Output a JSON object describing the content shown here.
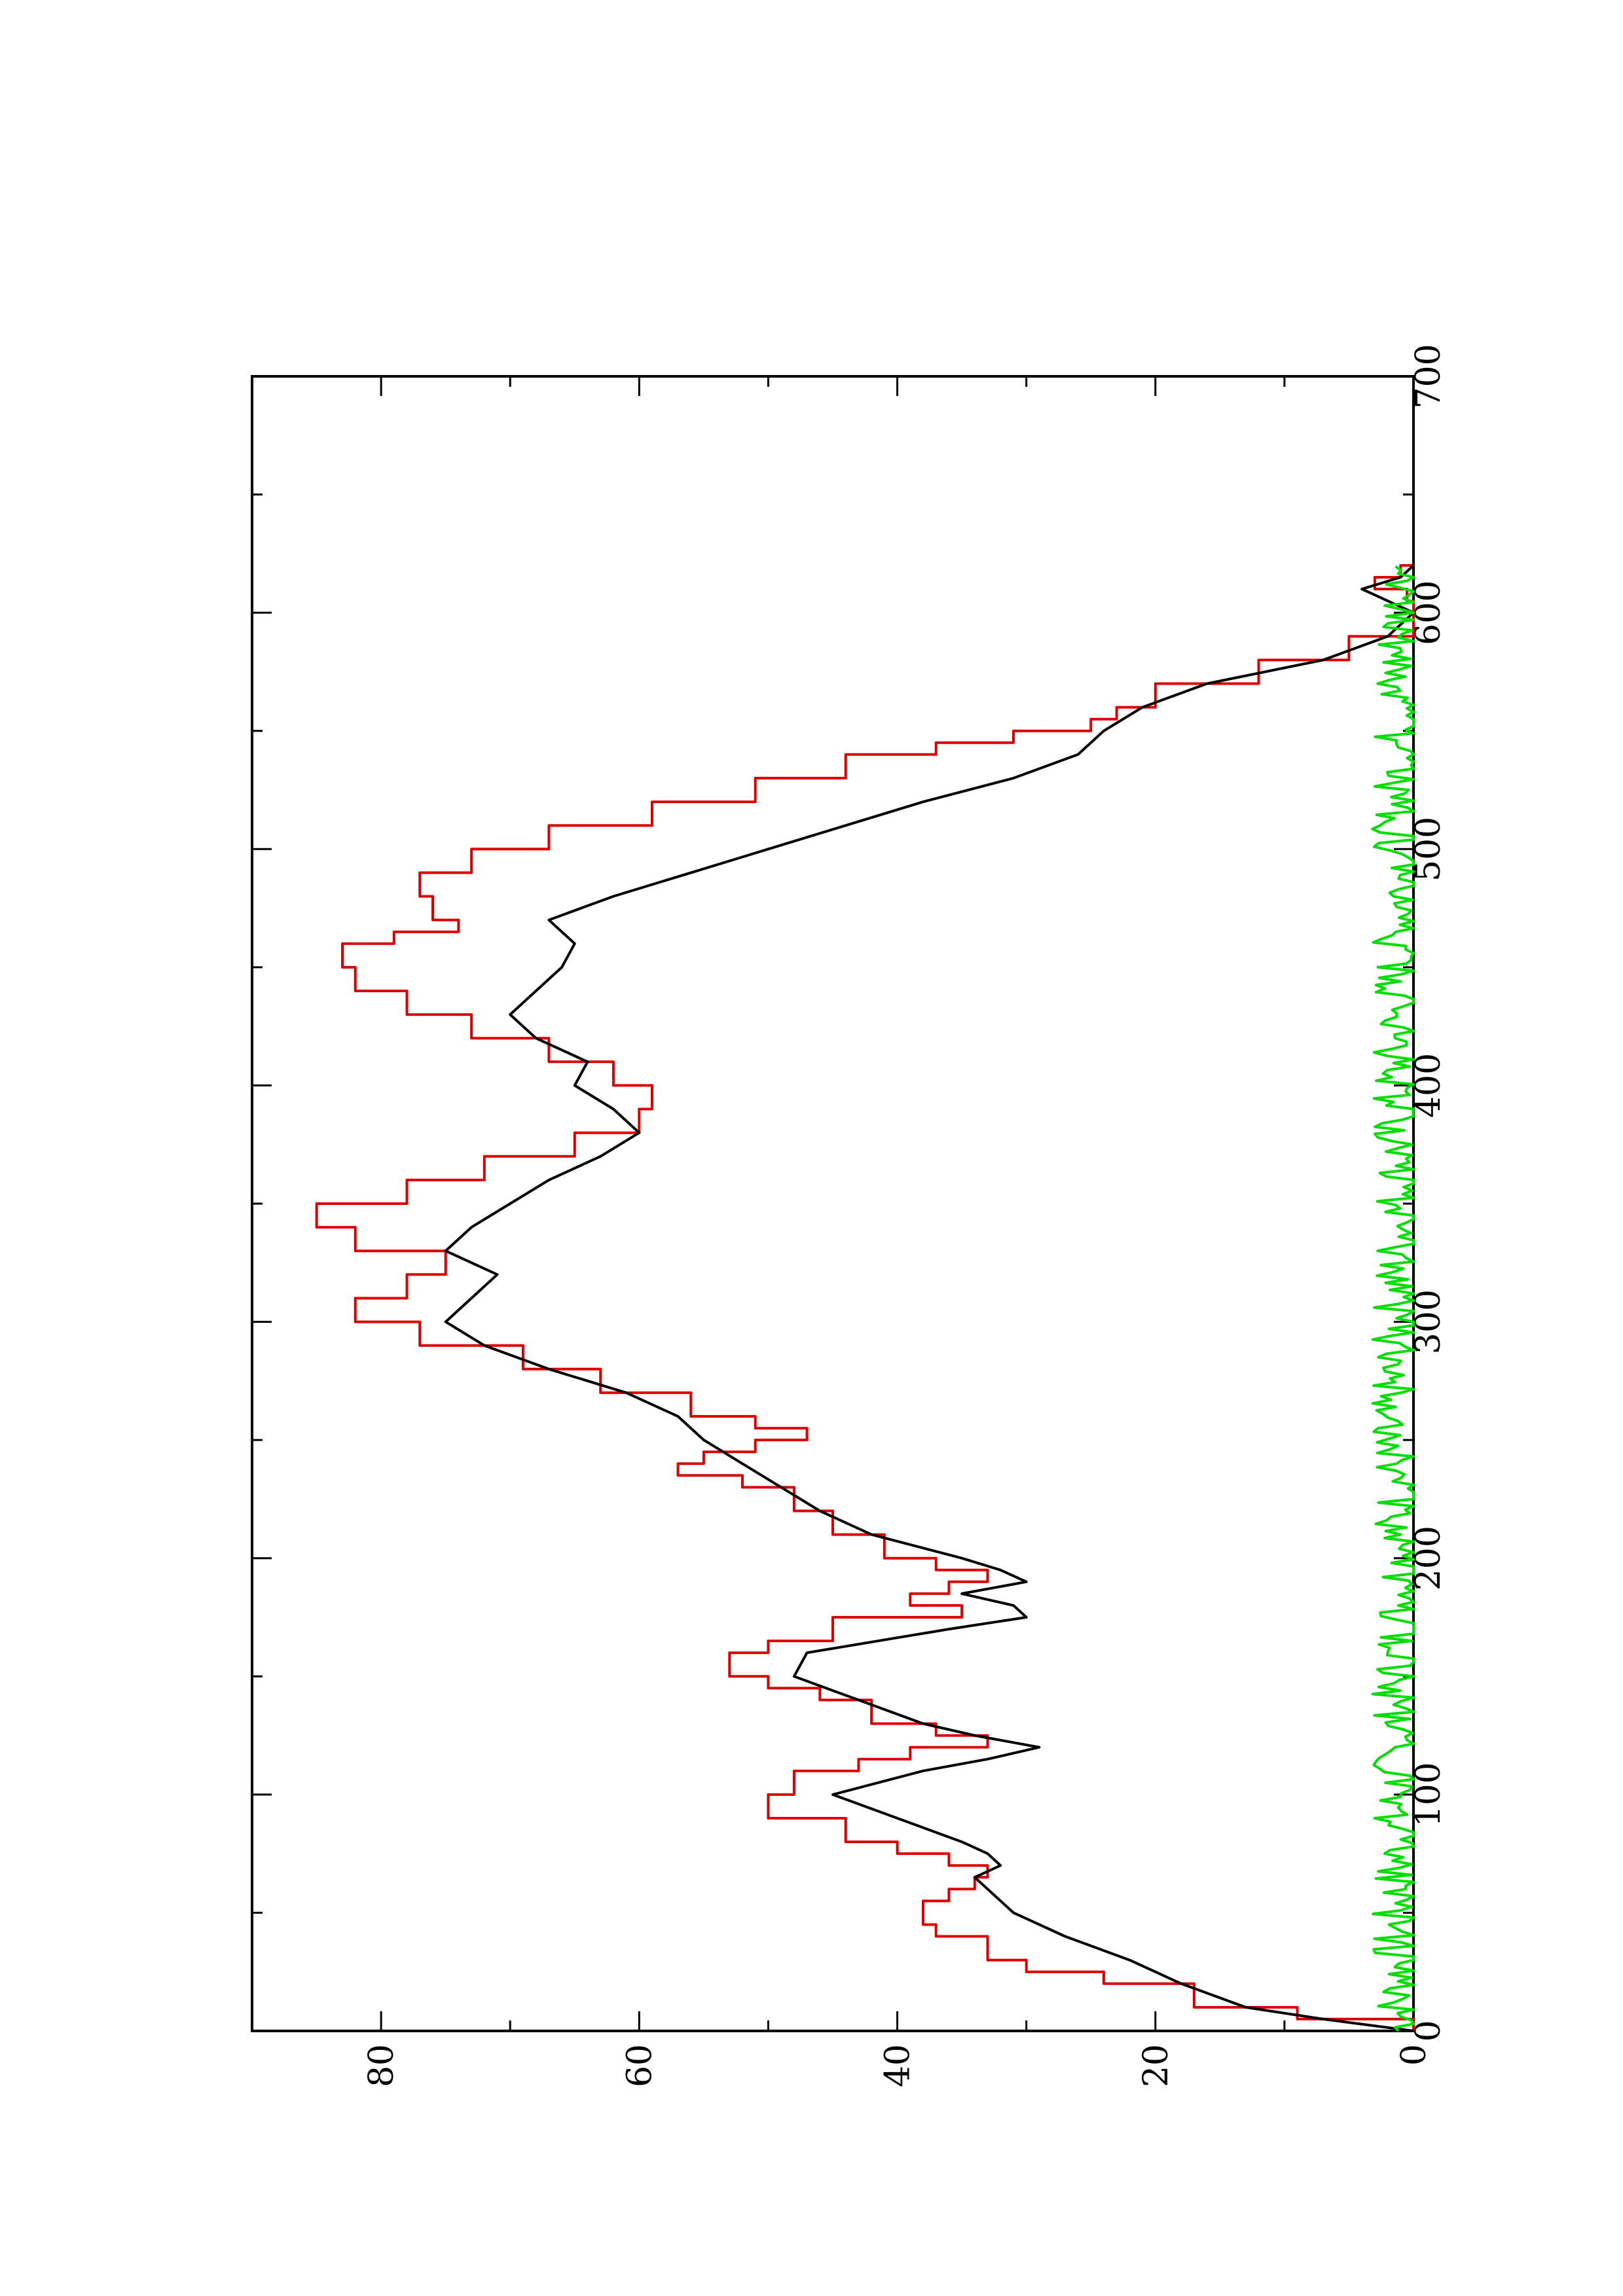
{
  "chart_data": {
    "type": "line",
    "orientation": "rotated-90-ccw",
    "xlim": [
      0,
      700
    ],
    "ylim": [
      0,
      90
    ],
    "x_ticks": [
      0,
      100,
      200,
      300,
      400,
      500,
      600,
      700
    ],
    "x_minor_ticks": [
      50,
      150,
      250,
      350,
      450,
      550,
      650
    ],
    "y_ticks": [
      0,
      20,
      40,
      60,
      80
    ],
    "y_minor_ticks": [
      10,
      30,
      50,
      70
    ],
    "x_tick_labels": [
      "0",
      "100",
      "200",
      "300",
      "400",
      "500",
      "600",
      "700"
    ],
    "y_tick_labels": [
      "0",
      "20",
      "40",
      "60",
      "80"
    ],
    "grid": false,
    "series": [
      {
        "color": "#dd0000",
        "style": "step",
        "points": [
          [
            0,
            0
          ],
          [
            5,
            9
          ],
          [
            10,
            17
          ],
          [
            20,
            24
          ],
          [
            25,
            30
          ],
          [
            30,
            33
          ],
          [
            40,
            37
          ],
          [
            45,
            38
          ],
          [
            55,
            36
          ],
          [
            60,
            34
          ],
          [
            65,
            33
          ],
          [
            70,
            36
          ],
          [
            75,
            40
          ],
          [
            80,
            44
          ],
          [
            90,
            50
          ],
          [
            100,
            48
          ],
          [
            110,
            43
          ],
          [
            115,
            39
          ],
          [
            120,
            33
          ],
          [
            125,
            37
          ],
          [
            130,
            42
          ],
          [
            140,
            46
          ],
          [
            145,
            50
          ],
          [
            150,
            53
          ],
          [
            160,
            50
          ],
          [
            165,
            45
          ],
          [
            175,
            35
          ],
          [
            180,
            39
          ],
          [
            185,
            36
          ],
          [
            190,
            33
          ],
          [
            195,
            37
          ],
          [
            200,
            41
          ],
          [
            210,
            45
          ],
          [
            220,
            48
          ],
          [
            230,
            52
          ],
          [
            235,
            57
          ],
          [
            240,
            55
          ],
          [
            245,
            51
          ],
          [
            250,
            47
          ],
          [
            255,
            51
          ],
          [
            260,
            56
          ],
          [
            270,
            63
          ],
          [
            280,
            69
          ],
          [
            290,
            77
          ],
          [
            300,
            82
          ],
          [
            310,
            78
          ],
          [
            320,
            75
          ],
          [
            330,
            82
          ],
          [
            340,
            85
          ],
          [
            350,
            78
          ],
          [
            360,
            72
          ],
          [
            370,
            65
          ],
          [
            380,
            60
          ],
          [
            390,
            59
          ],
          [
            400,
            62
          ],
          [
            410,
            67
          ],
          [
            420,
            73
          ],
          [
            430,
            78
          ],
          [
            440,
            82
          ],
          [
            450,
            83
          ],
          [
            460,
            79
          ],
          [
            465,
            74
          ],
          [
            470,
            76
          ],
          [
            480,
            77
          ],
          [
            490,
            73
          ],
          [
            500,
            67
          ],
          [
            510,
            59
          ],
          [
            520,
            51
          ],
          [
            530,
            44
          ],
          [
            540,
            37
          ],
          [
            545,
            31
          ],
          [
            550,
            25
          ],
          [
            555,
            23
          ],
          [
            560,
            20
          ],
          [
            570,
            12
          ],
          [
            580,
            5
          ],
          [
            590,
            0
          ],
          [
            600,
            0
          ],
          [
            605,
            0.5
          ],
          [
            610,
            3
          ],
          [
            615,
            1
          ],
          [
            620,
            0
          ]
        ]
      },
      {
        "color": "#000000",
        "style": "line",
        "points": [
          [
            0,
            0
          ],
          [
            5,
            7
          ],
          [
            10,
            13
          ],
          [
            20,
            18
          ],
          [
            30,
            22
          ],
          [
            40,
            27
          ],
          [
            50,
            31
          ],
          [
            60,
            33
          ],
          [
            65,
            34
          ],
          [
            70,
            32
          ],
          [
            75,
            33
          ],
          [
            80,
            35
          ],
          [
            90,
            40
          ],
          [
            100,
            45
          ],
          [
            110,
            38
          ],
          [
            115,
            33
          ],
          [
            120,
            29
          ],
          [
            125,
            34
          ],
          [
            130,
            38
          ],
          [
            140,
            43
          ],
          [
            150,
            48
          ],
          [
            160,
            47
          ],
          [
            170,
            36
          ],
          [
            175,
            30
          ],
          [
            180,
            31
          ],
          [
            185,
            35
          ],
          [
            190,
            30
          ],
          [
            195,
            32
          ],
          [
            200,
            35
          ],
          [
            210,
            42
          ],
          [
            220,
            46
          ],
          [
            230,
            49
          ],
          [
            240,
            52
          ],
          [
            250,
            55
          ],
          [
            260,
            57
          ],
          [
            270,
            61
          ],
          [
            280,
            67
          ],
          [
            290,
            72
          ],
          [
            300,
            75
          ],
          [
            310,
            73
          ],
          [
            320,
            71
          ],
          [
            330,
            75
          ],
          [
            340,
            73
          ],
          [
            350,
            70
          ],
          [
            360,
            67
          ],
          [
            370,
            63
          ],
          [
            380,
            60
          ],
          [
            390,
            62
          ],
          [
            400,
            65
          ],
          [
            410,
            64
          ],
          [
            420,
            68
          ],
          [
            430,
            70
          ],
          [
            440,
            68
          ],
          [
            450,
            66
          ],
          [
            460,
            65
          ],
          [
            470,
            67
          ],
          [
            480,
            62
          ],
          [
            490,
            56
          ],
          [
            500,
            50
          ],
          [
            510,
            44
          ],
          [
            520,
            38
          ],
          [
            530,
            31
          ],
          [
            540,
            26
          ],
          [
            550,
            24
          ],
          [
            560,
            21
          ],
          [
            570,
            16
          ],
          [
            580,
            7
          ],
          [
            590,
            2
          ],
          [
            600,
            0
          ],
          [
            605,
            2
          ],
          [
            610,
            4
          ],
          [
            615,
            1
          ],
          [
            620,
            0
          ]
        ]
      },
      {
        "color": "#00dd00",
        "style": "noisy",
        "x_range": [
          0,
          620
        ],
        "mean": 1.2,
        "amplitude": 2.0
      }
    ]
  }
}
